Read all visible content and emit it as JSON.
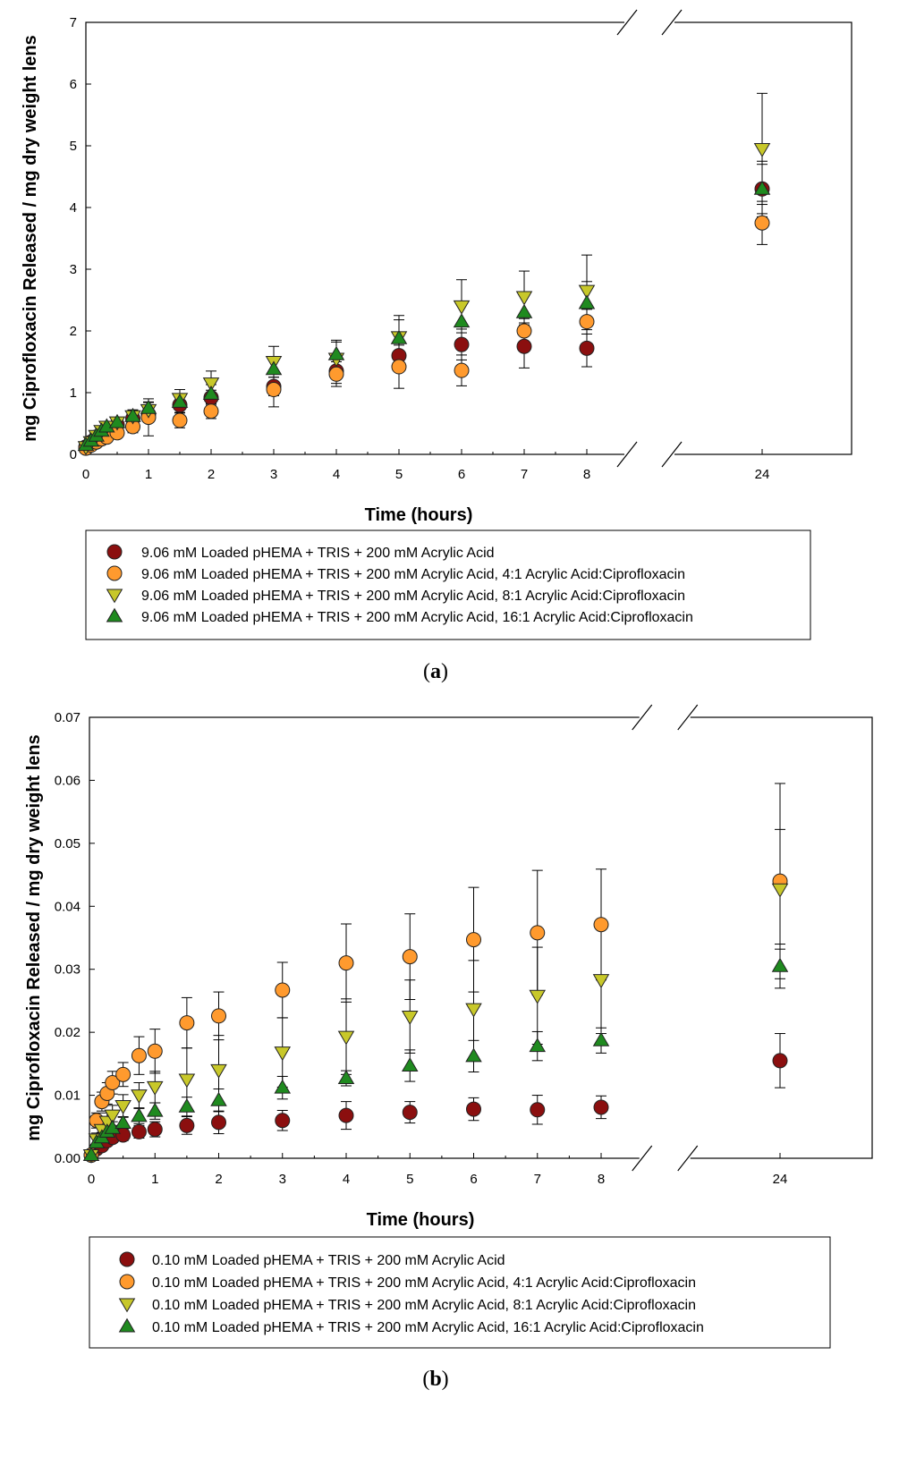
{
  "chart_data": [
    {
      "type": "scatter",
      "panel_label": "a",
      "xlabel": "Time (hours)",
      "ylabel": "mg Ciprofloxacin Released / mg dry weight lens",
      "ylim": [
        0,
        7
      ],
      "yticks": [
        "0",
        "1",
        "2",
        "3",
        "4",
        "5",
        "6",
        "7"
      ],
      "xticks": [
        "0",
        "1",
        "2",
        "3",
        "4",
        "5",
        "6",
        "7",
        "8",
        "24"
      ],
      "x_axis_break": [
        8.6,
        9.4
      ],
      "x": [
        0,
        0.083,
        0.167,
        0.25,
        0.333,
        0.5,
        0.75,
        1,
        1.5,
        2,
        3,
        4,
        5,
        6,
        7,
        8,
        24
      ],
      "series": [
        {
          "name": "9.06 mM Loaded pHEMA + TRIS + 200 mM Acrylic Acid",
          "marker": "circle",
          "color": "#8b0f0f",
          "values": [
            0.12,
            0.2,
            0.28,
            0.34,
            0.4,
            0.48,
            0.58,
            0.65,
            0.8,
            0.92,
            1.1,
            1.35,
            1.6,
            1.78,
            1.75,
            1.72,
            4.3
          ],
          "errors": [
            0.03,
            0.04,
            0.05,
            0.06,
            0.06,
            0.07,
            0.08,
            0.1,
            0.12,
            0.12,
            0.15,
            0.2,
            0.25,
            0.25,
            0.35,
            0.3,
            0.4
          ]
        },
        {
          "name": "9.06 mM Loaded pHEMA + TRIS + 200 mM Acrylic Acid, 4:1 Acrylic Acid:Ciprofloxacin",
          "marker": "circle",
          "color": "#ff9a2e",
          "values": [
            0.1,
            0.15,
            0.2,
            0.25,
            0.28,
            0.35,
            0.45,
            0.6,
            0.55,
            0.7,
            1.05,
            1.3,
            1.42,
            1.36,
            2.0,
            2.15,
            3.75
          ],
          "errors": [
            0.03,
            0.04,
            0.05,
            0.05,
            0.06,
            0.08,
            0.1,
            0.3,
            0.12,
            0.12,
            0.28,
            0.2,
            0.35,
            0.25,
            0.2,
            0.2,
            0.35
          ]
        },
        {
          "name": "9.06 mM Loaded pHEMA + TRIS + 200 mM Acrylic Acid, 8:1 Acrylic Acid:Ciprofloxacin",
          "marker": "triangle-down",
          "color": "#c8c82a",
          "values": [
            0.12,
            0.2,
            0.3,
            0.38,
            0.45,
            0.52,
            0.62,
            0.72,
            0.9,
            1.15,
            1.5,
            1.55,
            1.9,
            2.4,
            2.55,
            2.65,
            4.95
          ],
          "errors": [
            0.03,
            0.04,
            0.05,
            0.06,
            0.07,
            0.08,
            0.1,
            0.12,
            0.15,
            0.2,
            0.25,
            0.3,
            0.35,
            0.43,
            0.42,
            0.58,
            0.9
          ]
        },
        {
          "name": "9.06 mM Loaded pHEMA + TRIS + 200 mM Acrylic Acid, 16:1 Acrylic Acid:Ciprofloxacin",
          "marker": "triangle-up",
          "color": "#1f8a1f",
          "values": [
            0.15,
            0.22,
            0.3,
            0.38,
            0.45,
            0.52,
            0.62,
            0.75,
            0.85,
            0.98,
            1.38,
            1.62,
            1.88,
            2.15,
            2.3,
            2.45,
            4.3
          ],
          "errors": [
            0.03,
            0.04,
            0.05,
            0.06,
            0.07,
            0.08,
            0.1,
            0.1,
            0.12,
            0.15,
            0.2,
            0.2,
            0.3,
            0.3,
            0.3,
            0.35,
            0.45
          ]
        }
      ]
    },
    {
      "type": "scatter",
      "panel_label": "b",
      "xlabel": "Time (hours)",
      "ylabel": "mg Ciprofloxacin Released / mg dry weight lens",
      "ylim": [
        0,
        0.07
      ],
      "yticks": [
        "0.00",
        "0.01",
        "0.02",
        "0.03",
        "0.04",
        "0.05",
        "0.06",
        "0.07"
      ],
      "xticks": [
        "0",
        "1",
        "2",
        "3",
        "4",
        "5",
        "6",
        "7",
        "8",
        "24"
      ],
      "x_axis_break": [
        8.6,
        9.4
      ],
      "x": [
        0,
        0.083,
        0.167,
        0.25,
        0.333,
        0.5,
        0.75,
        1,
        1.5,
        2,
        3,
        4,
        5,
        6,
        7,
        8,
        24
      ],
      "series": [
        {
          "name": "0.10 mM Loaded pHEMA + TRIS + 200 mM Acrylic Acid",
          "marker": "circle",
          "color": "#8b0f0f",
          "values": [
            0.0005,
            0.0015,
            0.002,
            0.0028,
            0.0033,
            0.0037,
            0.0042,
            0.0046,
            0.0052,
            0.0057,
            0.006,
            0.0068,
            0.0073,
            0.0078,
            0.0077,
            0.0081,
            0.0155
          ],
          "errors": [
            0.0003,
            0.0005,
            0.0006,
            0.0007,
            0.0008,
            0.0009,
            0.001,
            0.0012,
            0.0014,
            0.0018,
            0.0016,
            0.0022,
            0.0017,
            0.0018,
            0.0023,
            0.0018,
            0.0043
          ]
        },
        {
          "name": "0.10 mM Loaded pHEMA + TRIS + 200 mM Acrylic Acid, 4:1 Acrylic Acid:Ciprofloxacin",
          "marker": "circle",
          "color": "#ff9a2e",
          "values": [
            0.0005,
            0.006,
            0.009,
            0.0103,
            0.012,
            0.0133,
            0.0163,
            0.017,
            0.0215,
            0.0226,
            0.0267,
            0.031,
            0.032,
            0.0347,
            0.0358,
            0.0371,
            0.044
          ],
          "errors": [
            0.0004,
            0.0012,
            0.0015,
            0.0017,
            0.0018,
            0.0019,
            0.003,
            0.0035,
            0.004,
            0.0038,
            0.0044,
            0.0062,
            0.0068,
            0.0083,
            0.0099,
            0.0088,
            0.0155
          ]
        },
        {
          "name": "0.10 mM Loaded pHEMA + TRIS + 200 mM Acrylic Acid, 8:1 Acrylic Acid:Ciprofloxacin",
          "marker": "triangle-down",
          "color": "#c8c82a",
          "values": [
            0.0005,
            0.003,
            0.0045,
            0.0058,
            0.0068,
            0.0083,
            0.01,
            0.0113,
            0.0125,
            0.014,
            0.0168,
            0.0193,
            0.0225,
            0.0237,
            0.0258,
            0.0283,
            0.0427
          ],
          "errors": [
            0.0004,
            0.001,
            0.0012,
            0.0014,
            0.0016,
            0.0018,
            0.002,
            0.0025,
            0.005,
            0.0055,
            0.0055,
            0.006,
            0.0058,
            0.0077,
            0.0077,
            0.0085,
            0.0095
          ]
        },
        {
          "name": "0.10 mM Loaded pHEMA + TRIS + 200 mM Acrylic Acid, 16:1 Acrylic Acid:Ciprofloxacin",
          "marker": "triangle-up",
          "color": "#1f8a1f",
          "values": [
            0.0005,
            0.0025,
            0.0033,
            0.0042,
            0.0048,
            0.0056,
            0.0067,
            0.0075,
            0.0082,
            0.0092,
            0.0112,
            0.0127,
            0.0147,
            0.0162,
            0.0178,
            0.0187,
            0.0305
          ],
          "errors": [
            0.0003,
            0.0007,
            0.0008,
            0.0009,
            0.001,
            0.001,
            0.0012,
            0.0013,
            0.0015,
            0.0018,
            0.0018,
            0.0012,
            0.0025,
            0.0025,
            0.0023,
            0.002,
            0.0035
          ]
        }
      ]
    }
  ]
}
